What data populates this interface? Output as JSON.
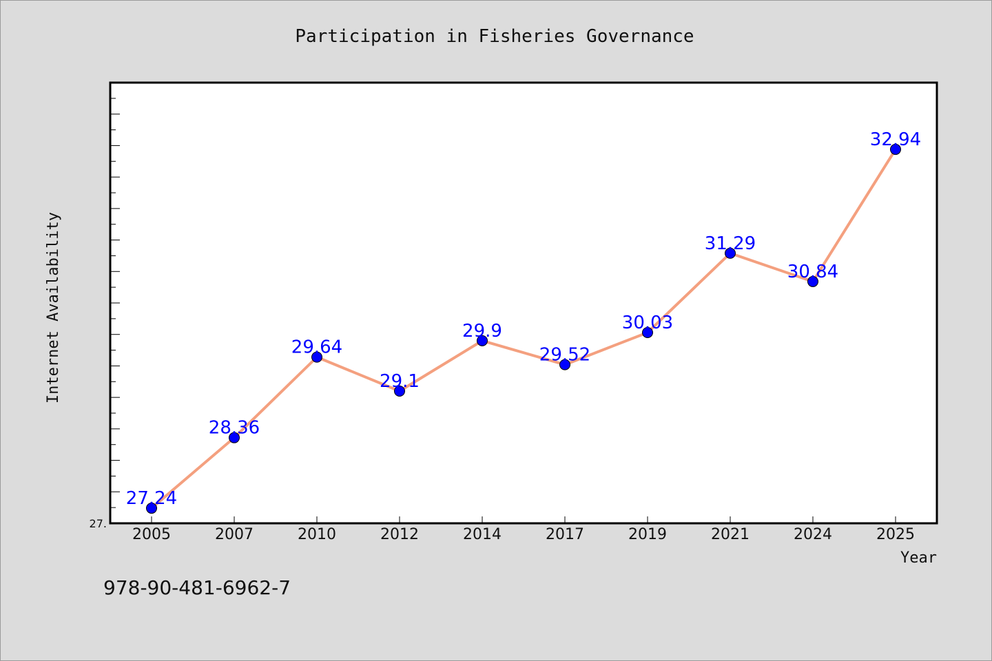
{
  "chart_data": {
    "type": "line",
    "title": "Participation in Fisheries Governance",
    "xlabel": "Year",
    "ylabel": "Internet Availability",
    "categories": [
      "2005",
      "2007",
      "2010",
      "2012",
      "2014",
      "2017",
      "2019",
      "2021",
      "2024",
      "2025"
    ],
    "values": [
      27.24,
      28.36,
      29.64,
      29.1,
      29.9,
      29.52,
      30.03,
      31.29,
      30.84,
      32.94
    ],
    "data_labels": [
      "27.24",
      "28.36",
      "29.64",
      "29.1",
      "29.9",
      "29.52",
      "30.03",
      "31.29",
      "30.84",
      "32.94"
    ],
    "ylim": [
      27.0,
      34.0
    ],
    "y_tick_labels": [
      "27."
    ],
    "grid": false,
    "line_color": "#f4a07f",
    "marker_color": "#0000ff",
    "label_color": "#0000ff"
  },
  "footnote": "978-90-481-6962-7"
}
